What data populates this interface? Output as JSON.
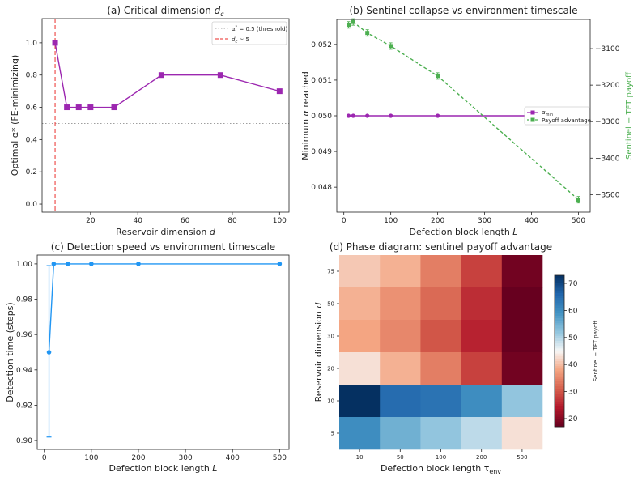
{
  "chart_data": [
    {
      "type": "line",
      "title": "(a) Critical dimension dc",
      "title_main": "(a) Critical dimension ",
      "title_var": "d",
      "title_sub": "c",
      "xlabel_main": "Reservoir dimension ",
      "xlabel_var": "d",
      "ylabel": "Optimal α* (FE-minimizing)",
      "xlim": [
        -0.5,
        104
      ],
      "ylim": [
        -0.05,
        1.15
      ],
      "xticks": [
        20,
        40,
        60,
        80,
        100
      ],
      "yticks": [
        0.0,
        0.2,
        0.4,
        0.6,
        0.8,
        1.0
      ],
      "xtick_labels": [
        "20",
        "40",
        "60",
        "80",
        "100"
      ],
      "ytick_labels": [
        "0.0",
        "0.2",
        "0.4",
        "0.6",
        "0.8",
        "1.0"
      ],
      "series": [
        {
          "x": [
            5,
            10,
            15,
            20,
            30,
            50,
            75,
            100
          ],
          "y": [
            1.0,
            0.6,
            0.6,
            0.6,
            0.6,
            0.8,
            0.8,
            0.7
          ],
          "color": "#9c27b0",
          "marker": "square"
        }
      ],
      "threshold_y": 0.5,
      "dc_x": 5,
      "legend": [
        "α* = 0.5 (threshold)",
        "dc ≈ 5"
      ],
      "legend_position": "top-right"
    },
    {
      "type": "line",
      "title": "(b) Sentinel collapse vs environment timescale",
      "xlabel": "Defection block length L",
      "xlabel_main": "Defection block length ",
      "xlabel_var": "L",
      "ylabel": "Minimum α reached",
      "ylabel_right": "Sentinel − TFT payoff",
      "xlim": [
        -15,
        525
      ],
      "ylim": [
        0.0473,
        0.0527
      ],
      "ylim_right": [
        -3548,
        -3020
      ],
      "xticks": [
        0,
        100,
        200,
        300,
        400,
        500
      ],
      "xtick_labels": [
        "0",
        "100",
        "200",
        "300",
        "400",
        "500"
      ],
      "yticks": [
        0.048,
        0.049,
        0.05,
        0.051,
        0.052
      ],
      "ytick_labels": [
        "0.048",
        "0.049",
        "0.050",
        "0.051",
        "0.052"
      ],
      "yticks_right": [
        -3500,
        -3400,
        -3300,
        -3200,
        -3100
      ],
      "ytick_labels_right": [
        "−3500",
        "−3400",
        "−3300",
        "−3200",
        "−3100"
      ],
      "series": [
        {
          "name": "αmin",
          "x": [
            10,
            20,
            50,
            100,
            200,
            500
          ],
          "y": [
            0.05,
            0.05,
            0.05,
            0.05,
            0.05,
            0.05
          ],
          "color": "#9c27b0",
          "axis": "left"
        },
        {
          "name": "Payoff advantage",
          "x": [
            10,
            20,
            50,
            100,
            200,
            500
          ],
          "y": [
            -3035,
            -3027,
            -3057,
            -3093,
            -3175,
            -3514
          ],
          "color": "#4caf50",
          "axis": "right"
        }
      ],
      "legend": [
        "αmin",
        "Payoff advantage"
      ],
      "legend_position": "center-right"
    },
    {
      "type": "line",
      "title": "(c) Detection speed vs environment timescale",
      "xlabel": "Defection block length L",
      "xlabel_main": "Defection block length ",
      "xlabel_var": "L",
      "ylabel": "Detection time (steps)",
      "xlim": [
        -15,
        520
      ],
      "ylim": [
        0.895,
        1.005
      ],
      "xticks": [
        0,
        100,
        200,
        300,
        400,
        500
      ],
      "xtick_labels": [
        "0",
        "100",
        "200",
        "300",
        "400",
        "500"
      ],
      "yticks": [
        0.9,
        0.92,
        0.94,
        0.96,
        0.98,
        1.0
      ],
      "ytick_labels": [
        "0.90",
        "0.92",
        "0.94",
        "0.96",
        "0.98",
        "1.00"
      ],
      "series": [
        {
          "x": [
            10,
            20,
            50,
            100,
            200,
            500
          ],
          "y": [
            0.95,
            1.0,
            1.0,
            1.0,
            1.0,
            1.0
          ],
          "err_low": [
            0.902
          ],
          "err_high": [
            0.999
          ],
          "color": "#2196f3"
        }
      ]
    },
    {
      "type": "heatmap",
      "title": "(d) Phase diagram: sentinel payoff advantage",
      "xlabel": "Defection block length τenv",
      "xlabel_main": "Defection block length τ",
      "xlabel_sub": "env",
      "ylabel": "Reservoir dimension d",
      "ylabel_main": "Reservoir dimension ",
      "ylabel_var": "d",
      "x_categories": [
        "10",
        "50",
        "100",
        "200",
        "500"
      ],
      "y_categories": [
        "75",
        "50",
        "30",
        "20",
        "10",
        "5"
      ],
      "values": [
        [
          41,
          39,
          34,
          28,
          18
        ],
        [
          39,
          36,
          32,
          26,
          16
        ],
        [
          38,
          35,
          30,
          25,
          16
        ],
        [
          43,
          39,
          34,
          28,
          18
        ],
        [
          73,
          65,
          64,
          60,
          52
        ],
        [
          60,
          55,
          52,
          49,
          43
        ]
      ],
      "colorbar_label": "Sentinel − TFT payoff",
      "colorbar_range": [
        17,
        73
      ],
      "colorbar_ticks": [
        20,
        30,
        40,
        50,
        60,
        70
      ],
      "colorbar_tick_labels": [
        "20",
        "30",
        "40",
        "50",
        "60",
        "70"
      ],
      "colormap": "RdBu"
    }
  ]
}
